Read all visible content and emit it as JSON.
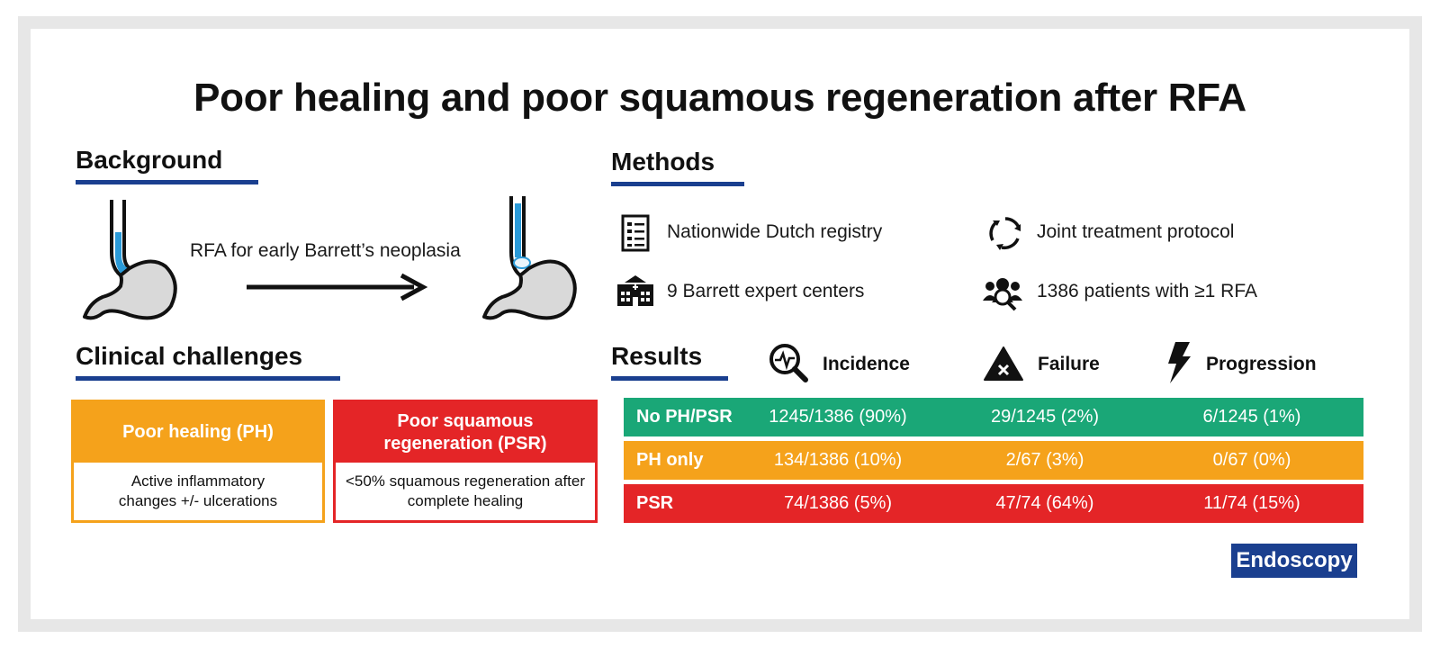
{
  "title": "Poor healing and poor squamous regeneration after RFA",
  "background": {
    "heading": "Background",
    "arrow_label": "RFA for early Barrett’s neoplasia"
  },
  "methods": {
    "heading": "Methods",
    "items": [
      {
        "icon": "checklist-icon",
        "label": "Nationwide Dutch registry"
      },
      {
        "icon": "cycle-arrows-icon",
        "label": "Joint treatment protocol"
      },
      {
        "icon": "hospital-icon",
        "label": "9 Barrett expert centers"
      },
      {
        "icon": "patients-group-icon",
        "label": "1386 patients with ≥1 RFA"
      }
    ]
  },
  "clinical": {
    "heading": "Clinical challenges",
    "boxes": [
      {
        "title": "Poor healing (PH)",
        "body": "Active inflammatory changes +/- ulcerations",
        "color": "#f5a21b"
      },
      {
        "title": "Poor squamous regeneration (PSR)",
        "body": "<50% squamous regeneration after complete healing",
        "color": "#e42527"
      }
    ]
  },
  "results": {
    "heading": "Results",
    "columns": [
      {
        "icon": "magnifier-pulse-icon",
        "label": "Incidence"
      },
      {
        "icon": "warning-x-icon",
        "label": "Failure"
      },
      {
        "icon": "lightning-icon",
        "label": "Progression"
      }
    ],
    "rows": [
      {
        "label": "No PH/PSR",
        "incidence": "1245/1386 (90%)",
        "failure": "29/1245 (2%)",
        "progression": "6/1245 (1%)",
        "color": "#1aa777"
      },
      {
        "label": "PH only",
        "incidence": "134/1386 (10%)",
        "failure": "2/67 (3%)",
        "progression": "0/67 (0%)",
        "color": "#f5a21b"
      },
      {
        "label": "PSR",
        "incidence": "74/1386 (5%)",
        "failure": "47/74 (64%)",
        "progression": "11/74 (15%)",
        "color": "#e42527"
      }
    ]
  },
  "journal": "Endoscopy",
  "colors": {
    "accent": "#1a3f8f",
    "esophagus_blue": "#2a9ad8"
  }
}
